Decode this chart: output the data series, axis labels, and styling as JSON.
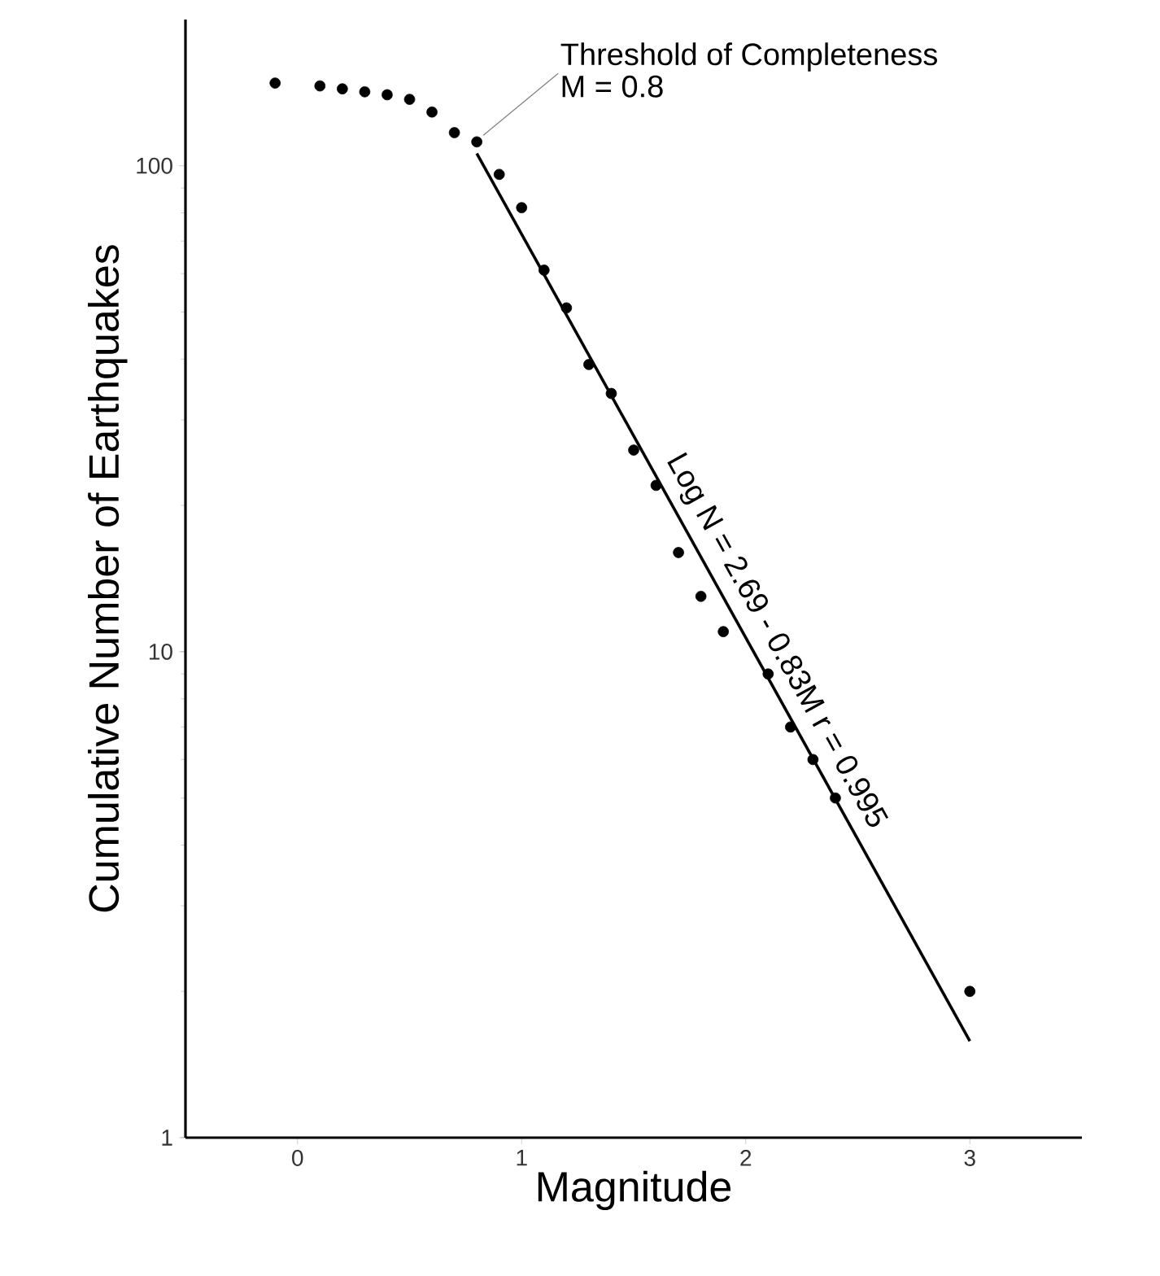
{
  "chart_data": {
    "type": "scatter",
    "xlabel": "Magnitude",
    "ylabel": "Cumulative Number of Earthquakes",
    "log": "y",
    "xlim": [
      -0.5,
      3.5
    ],
    "ylim": [
      1,
      200
    ],
    "xticks": [
      0,
      1,
      2,
      3
    ],
    "yticks": [
      1,
      10,
      100
    ],
    "grid": false,
    "series": [
      {
        "color": "#000000",
        "marker": "circle",
        "x": [
          -0.1,
          0.1,
          0.2,
          0.3,
          0.4,
          0.5,
          0.6,
          0.7,
          0.8,
          0.9,
          1.0,
          1.1,
          1.2,
          1.3,
          1.4,
          1.5,
          1.6,
          1.7,
          1.8,
          1.9,
          2.1,
          2.2,
          2.3,
          2.4,
          3.0
        ],
        "values": [
          148,
          146,
          144,
          142,
          140,
          137,
          129,
          117,
          112,
          96,
          82,
          61,
          51,
          39,
          34,
          26,
          22,
          16,
          13,
          11,
          9,
          7,
          6,
          5,
          2
        ]
      },
      {
        "type": "line",
        "color": "#000000",
        "marker": "none",
        "line_style": "solid",
        "x": [
          0.8,
          3.0
        ],
        "values": [
          106,
          1.58
        ]
      }
    ],
    "annotations": [
      {
        "text": "Threshold of Completeness",
        "x": 0.8,
        "y": 112
      },
      "M = 0.8",
      {
        "text": "Log N = 2.69 - 0.83M   r = 0.995",
        "x": 2.05,
        "y": 10
      }
    ]
  }
}
